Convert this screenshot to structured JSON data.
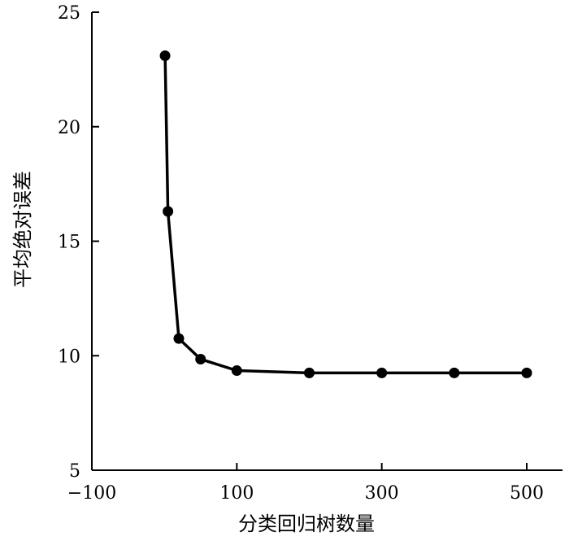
{
  "chart_data": {
    "type": "line",
    "xlabel": "分类回归树数量",
    "ylabel": "平均绝对误差",
    "xlim": [
      -100,
      500
    ],
    "ylim": [
      5,
      25
    ],
    "x_ticks": [
      -100,
      100,
      300,
      500
    ],
    "x_tick_labels": [
      "−100",
      "100",
      "300",
      "500"
    ],
    "y_ticks": [
      5,
      10,
      15,
      20,
      25
    ],
    "y_tick_labels": [
      "5",
      "10",
      "15",
      "20",
      "25"
    ],
    "grid": false,
    "series": [
      {
        "color": "#000000",
        "marker": "circle",
        "x": [
          1,
          5,
          20,
          50,
          100,
          200,
          300,
          400,
          500
        ],
        "y": [
          23.1,
          16.3,
          10.75,
          9.85,
          9.35,
          9.25,
          9.25,
          9.25,
          9.25
        ]
      }
    ]
  }
}
